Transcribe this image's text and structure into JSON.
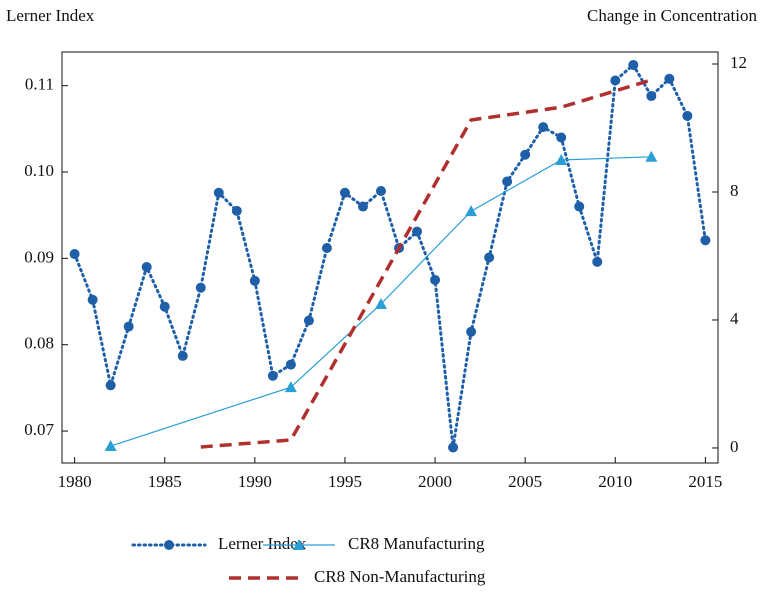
{
  "chart_data": {
    "type": "line",
    "y_label": "Lerner Index",
    "y2_label": "Change in Concentration",
    "xlim": [
      1979.3,
      2015.7
    ],
    "xticks": [
      1980,
      1985,
      1990,
      1995,
      2000,
      2005,
      2010,
      2015
    ],
    "ylim": [
      0.0663,
      0.1139
    ],
    "yticks": [
      0.07,
      0.08,
      0.09,
      {
        "value": 0.1,
        "label": "0.10"
      },
      0.11
    ],
    "y2lim": [
      -0.47,
      12.375
    ],
    "y2ticks": [
      0,
      4,
      8,
      12
    ],
    "series": [
      {
        "name": "Lerner Index",
        "color": "#1f5fa8",
        "marker": "circle",
        "dash": "dotted",
        "x": [
          1980,
          1981,
          1982,
          1983,
          1984,
          1985,
          1986,
          1987,
          1988,
          1989,
          1990,
          1991,
          1992,
          1993,
          1994,
          1995,
          1996,
          1997,
          1998,
          1999,
          2000,
          2001,
          2002,
          2003,
          2004,
          2005,
          2006,
          2007,
          2008,
          2009,
          2010,
          2011,
          2012,
          2013,
          2014,
          2015
        ],
        "values": [
          0.0905,
          0.0852,
          0.0753,
          0.0821,
          0.089,
          0.0844,
          0.0787,
          0.0866,
          0.0976,
          0.0955,
          0.0874,
          0.0764,
          0.0777,
          0.0828,
          0.0912,
          0.0976,
          0.096,
          0.0978,
          0.0912,
          0.0931,
          0.0875,
          0.0681,
          0.0815,
          0.0901,
          0.0989,
          0.102,
          0.1052,
          0.104,
          0.096,
          0.0896,
          0.1106,
          0.1124,
          0.1088,
          0.1108,
          0.1065,
          0.0921
        ]
      },
      {
        "name": "CR8 Manufacturing",
        "color": "#2a9fd6",
        "marker": "triangle",
        "dash": "solid",
        "axis": "y2",
        "x": [
          1982,
          1992,
          1997,
          2002,
          2007,
          2012
        ],
        "values": [
          0.06,
          1.9,
          4.5,
          7.4,
          9.0,
          9.1
        ]
      },
      {
        "name": "CR8 Non-Manufacturing",
        "color": "#b03030",
        "marker": "none",
        "dash": "dashed",
        "axis": "y2",
        "x": [
          1987,
          1992,
          2002,
          2007,
          2012
        ],
        "values": [
          0.03,
          0.25,
          10.25,
          10.65,
          11.5
        ]
      }
    ]
  }
}
